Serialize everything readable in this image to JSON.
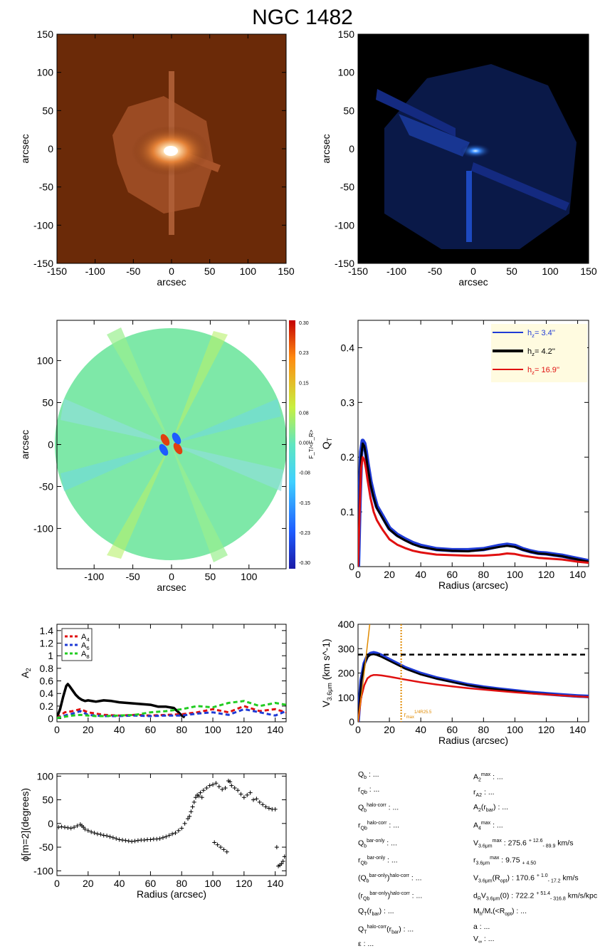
{
  "title": "NGC 1482",
  "colors": {
    "image_panel_bg": "#6b2a08",
    "image_core": "#ffffff",
    "image_glow": "#ff9a3c",
    "residual_bg": "#000000",
    "residual_color": "#2a6cff",
    "h1_color": "#1f3bd6",
    "h2_color": "#000000",
    "h3_color": "#e01010",
    "legend_bg": "#fffbe0",
    "a4_color": "#e01010",
    "a6_color": "#1f3bd6",
    "a8_color": "#22cc22",
    "rmax_line_color": "#e08a00"
  },
  "chart_data": [
    {
      "id": "galaxy_image",
      "type": "heatmap",
      "xlabel": "arcsec",
      "ylabel": "arcsec",
      "xlim": [
        -150,
        150
      ],
      "ylim": [
        -150,
        150
      ],
      "xticks": [
        -150,
        -100,
        -50,
        0,
        50,
        100,
        150
      ],
      "yticks": [
        -150,
        -100,
        -50,
        0,
        50,
        100,
        150
      ],
      "colormap": "orange"
    },
    {
      "id": "residual_image",
      "type": "heatmap",
      "xlabel": "arcsec",
      "ylabel": "arcsec",
      "xlim": [
        -150,
        150
      ],
      "ylim": [
        -150,
        150
      ],
      "xticks": [
        -150,
        -100,
        -50,
        0,
        50,
        100,
        150
      ],
      "yticks": [
        -150,
        -100,
        -50,
        0,
        50,
        100,
        150
      ],
      "colormap": "blue"
    },
    {
      "id": "force_map",
      "type": "heatmap",
      "xlabel": "arcsec",
      "ylabel": "arcsec",
      "xlim": [
        -148,
        148
      ],
      "ylim": [
        -148,
        148
      ],
      "xticks": [
        -100,
        -50,
        0,
        50,
        100
      ],
      "yticks": [
        -100,
        -50,
        0,
        50,
        100
      ],
      "colorbar": {
        "label": "F_T/<F_R>",
        "range": [
          -0.3,
          0.3
        ],
        "ticks": [
          "0.30",
          "0.23",
          "0.15",
          "0.08",
          "0.00",
          "-0.08",
          "-0.15",
          "-0.23",
          "-0.30"
        ]
      }
    },
    {
      "id": "qt_profile",
      "type": "line",
      "xlabel": "Radius (arcsec)",
      "ylabel": "Q_T",
      "xlim": [
        0,
        147
      ],
      "ylim": [
        0,
        0.45
      ],
      "xticks": [
        0,
        20,
        40,
        60,
        80,
        100,
        120,
        140
      ],
      "yticks": [
        0.0,
        0.1,
        0.2,
        0.3,
        0.4
      ],
      "legend": "top-right",
      "legend_entries": [
        {
          "label": "h_z= 3.4''",
          "color": "#1f3bd6"
        },
        {
          "label": "h_z= 4.2''",
          "color": "#000000"
        },
        {
          "label": "h_z= 16.9''",
          "color": "#e01010"
        }
      ],
      "series": [
        {
          "name": "h_z= 3.4''",
          "color": "#1f3bd6",
          "x": [
            0,
            1,
            2,
            3,
            4,
            5,
            6,
            8,
            10,
            12,
            14,
            16,
            18,
            20,
            25,
            30,
            35,
            40,
            50,
            60,
            70,
            80,
            90,
            95,
            100,
            105,
            110,
            115,
            120,
            125,
            130,
            135,
            140,
            147
          ],
          "y": [
            0,
            0.12,
            0.21,
            0.23,
            0.225,
            0.21,
            0.19,
            0.155,
            0.13,
            0.11,
            0.1,
            0.09,
            0.08,
            0.07,
            0.058,
            0.05,
            0.043,
            0.038,
            0.032,
            0.03,
            0.03,
            0.032,
            0.038,
            0.04,
            0.038,
            0.032,
            0.028,
            0.025,
            0.024,
            0.022,
            0.02,
            0.017,
            0.014,
            0.01
          ]
        },
        {
          "name": "h_z= 4.2''",
          "color": "#000000",
          "x": [
            0,
            1,
            2,
            3,
            4,
            5,
            6,
            8,
            10,
            12,
            14,
            16,
            18,
            20,
            25,
            30,
            35,
            40,
            50,
            60,
            70,
            80,
            90,
            95,
            100,
            105,
            110,
            115,
            120,
            125,
            130,
            135,
            140,
            147
          ],
          "y": [
            0,
            0.115,
            0.2,
            0.225,
            0.22,
            0.205,
            0.185,
            0.15,
            0.126,
            0.107,
            0.097,
            0.087,
            0.077,
            0.068,
            0.056,
            0.048,
            0.041,
            0.036,
            0.031,
            0.029,
            0.028,
            0.031,
            0.036,
            0.038,
            0.036,
            0.031,
            0.027,
            0.024,
            0.023,
            0.021,
            0.019,
            0.016,
            0.013,
            0.009
          ]
        },
        {
          "name": "h_z= 16.9''",
          "color": "#e01010",
          "x": [
            0,
            1,
            2,
            3,
            4,
            5,
            6,
            8,
            10,
            12,
            14,
            16,
            18,
            20,
            25,
            30,
            35,
            40,
            50,
            60,
            70,
            80,
            90,
            95,
            100,
            105,
            110,
            115,
            120,
            125,
            130,
            135,
            140,
            147
          ],
          "y": [
            0,
            0.1,
            0.18,
            0.2,
            0.195,
            0.18,
            0.16,
            0.125,
            0.1,
            0.085,
            0.075,
            0.066,
            0.058,
            0.05,
            0.04,
            0.034,
            0.029,
            0.026,
            0.022,
            0.021,
            0.02,
            0.02,
            0.022,
            0.024,
            0.023,
            0.02,
            0.018,
            0.016,
            0.015,
            0.014,
            0.013,
            0.011,
            0.009,
            0.007
          ]
        }
      ]
    },
    {
      "id": "fourier_amplitudes",
      "type": "line",
      "xlabel": "",
      "ylabel": "A_2",
      "xlim": [
        0,
        147
      ],
      "ylim": [
        -0.05,
        1.5
      ],
      "xticks": [
        0,
        20,
        40,
        60,
        80,
        100,
        120,
        140
      ],
      "yticks": [
        0.0,
        0.2,
        0.4,
        0.6,
        0.8,
        1.0,
        1.2,
        1.4
      ],
      "legend": "top-left",
      "legend_entries": [
        {
          "label": "A_4",
          "color": "#e01010"
        },
        {
          "label": "A_6",
          "color": "#1f3bd6"
        },
        {
          "label": "A_8",
          "color": "#22cc22"
        }
      ],
      "series": [
        {
          "name": "A_2",
          "color": "#000000",
          "dash": false,
          "x": [
            0,
            2,
            4,
            6,
            7,
            8,
            10,
            12,
            14,
            16,
            18,
            20,
            25,
            30,
            35,
            40,
            45,
            50,
            55,
            60,
            65,
            70,
            75,
            78,
            80,
            82
          ],
          "y": [
            0.02,
            0.15,
            0.35,
            0.52,
            0.55,
            0.52,
            0.45,
            0.38,
            0.33,
            0.3,
            0.28,
            0.29,
            0.27,
            0.29,
            0.28,
            0.26,
            0.25,
            0.24,
            0.23,
            0.22,
            0.19,
            0.19,
            0.17,
            0.1,
            0.05,
            0.02
          ]
        },
        {
          "name": "A_4",
          "color": "#e01010",
          "dash": true,
          "x": [
            0,
            5,
            10,
            15,
            20,
            25,
            30,
            40,
            50,
            60,
            70,
            80,
            90,
            100,
            110,
            120,
            130,
            140,
            147
          ],
          "y": [
            0.01,
            0.1,
            0.12,
            0.15,
            0.1,
            0.08,
            0.06,
            0.05,
            0.06,
            0.05,
            0.06,
            0.07,
            0.1,
            0.15,
            0.1,
            0.2,
            0.12,
            0.15,
            0.1
          ]
        },
        {
          "name": "A_6",
          "color": "#1f3bd6",
          "dash": true,
          "x": [
            0,
            5,
            10,
            15,
            20,
            25,
            30,
            40,
            50,
            60,
            70,
            80,
            90,
            100,
            110,
            120,
            130,
            140,
            147
          ],
          "y": [
            0.01,
            0.05,
            0.08,
            0.12,
            0.06,
            0.05,
            0.04,
            0.04,
            0.05,
            0.04,
            0.05,
            0.05,
            0.08,
            0.1,
            0.06,
            0.15,
            0.1,
            0.05,
            0.12
          ]
        },
        {
          "name": "A_8",
          "color": "#22cc22",
          "dash": true,
          "x": [
            0,
            5,
            10,
            15,
            20,
            25,
            30,
            40,
            50,
            60,
            70,
            80,
            90,
            100,
            110,
            120,
            130,
            140,
            147
          ],
          "y": [
            0.01,
            0.03,
            0.05,
            0.06,
            0.05,
            0.04,
            0.04,
            0.05,
            0.06,
            0.1,
            0.12,
            0.15,
            0.2,
            0.18,
            0.25,
            0.28,
            0.2,
            0.25,
            0.22
          ]
        }
      ]
    },
    {
      "id": "rotation_curve",
      "type": "line",
      "xlabel": "Radius (arcsec)",
      "ylabel": "V_3.6μm (km s^-1)",
      "xlim": [
        0,
        147
      ],
      "ylim": [
        0,
        400
      ],
      "xticks": [
        0,
        20,
        40,
        60,
        80,
        100,
        120,
        140
      ],
      "yticks": [
        0,
        100,
        200,
        300,
        400
      ],
      "vmax_line": 275.6,
      "rmax_line_x": 27.5,
      "rmax_label": "r_max^(1/4R_25.5)",
      "series": [
        {
          "name": "",
          "color": "#1f3bd6",
          "x": [
            0,
            2,
            4,
            6,
            8,
            10,
            12,
            15,
            20,
            30,
            40,
            50,
            60,
            70,
            80,
            90,
            100,
            110,
            120,
            130,
            140,
            147
          ],
          "y": [
            0,
            170,
            240,
            270,
            280,
            283,
            280,
            272,
            255,
            222,
            198,
            180,
            166,
            152,
            142,
            134,
            127,
            120,
            115,
            110,
            106,
            104
          ]
        },
        {
          "name": "",
          "color": "#000000",
          "x": [
            0,
            2,
            4,
            6,
            8,
            10,
            12,
            15,
            20,
            30,
            40,
            50,
            60,
            70,
            80,
            90,
            100,
            110,
            120,
            130,
            140,
            147
          ],
          "y": [
            0,
            165,
            235,
            265,
            275,
            277,
            274,
            266,
            250,
            218,
            194,
            177,
            163,
            150,
            140,
            132,
            125,
            118,
            113,
            108,
            104,
            102
          ]
        },
        {
          "name": "",
          "color": "#e01010",
          "x": [
            0,
            2,
            4,
            6,
            8,
            10,
            12,
            15,
            20,
            30,
            40,
            50,
            60,
            70,
            80,
            90,
            100,
            110,
            120,
            130,
            140,
            147
          ],
          "y": [
            0,
            100,
            150,
            178,
            188,
            192,
            192,
            190,
            185,
            173,
            162,
            153,
            145,
            138,
            132,
            126,
            121,
            116,
            112,
            108,
            104,
            102
          ]
        },
        {
          "name": "",
          "color": "#e08a00",
          "x": [
            0,
            3,
            5,
            7.5
          ],
          "y": [
            0,
            150,
            260,
            400
          ]
        }
      ]
    },
    {
      "id": "phase_angle",
      "type": "scatter",
      "xlabel": "Radius (arcsec)",
      "ylabel": "ϕ[m=2](degrees)",
      "xlim": [
        0,
        147
      ],
      "ylim": [
        -110,
        105
      ],
      "xticks": [
        0,
        20,
        40,
        60,
        80,
        100,
        120,
        140
      ],
      "yticks": [
        -100,
        -50,
        0,
        50,
        100
      ],
      "series": [
        {
          "name": "",
          "x": [
            1,
            3,
            5,
            7,
            9,
            11,
            13,
            15,
            16,
            17,
            18,
            20,
            22,
            24,
            26,
            28,
            30,
            32,
            34,
            36,
            38,
            40,
            42,
            44,
            46,
            48,
            50,
            52,
            54,
            56,
            58,
            60,
            62,
            64,
            66,
            68,
            70,
            72,
            74,
            76,
            78,
            80,
            82,
            84,
            85,
            86,
            87,
            88,
            89,
            90,
            91,
            92,
            93,
            94,
            96,
            98,
            100,
            102,
            104,
            106,
            108,
            110,
            111,
            112,
            114,
            116,
            118,
            120,
            122,
            124,
            126,
            128,
            130,
            132,
            134,
            136,
            138,
            140,
            141,
            142,
            143,
            144,
            145,
            146,
            101,
            103,
            105,
            107,
            109
          ],
          "y": [
            -8,
            -7,
            -8,
            -9,
            -10,
            -8,
            -5,
            -2,
            -5,
            -8,
            -12,
            -15,
            -18,
            -20,
            -22,
            -23,
            -25,
            -26,
            -28,
            -30,
            -32,
            -34,
            -35,
            -36,
            -37,
            -38,
            -37,
            -36,
            -35,
            -35,
            -34,
            -34,
            -33,
            -33,
            -32,
            -30,
            -28,
            -25,
            -22,
            -20,
            -15,
            -10,
            0,
            10,
            15,
            25,
            35,
            45,
            55,
            60,
            58,
            65,
            55,
            70,
            75,
            80,
            82,
            85,
            78,
            72,
            75,
            90,
            88,
            80,
            75,
            70,
            62,
            55,
            60,
            65,
            50,
            52,
            45,
            40,
            35,
            32,
            30,
            30,
            -50,
            -90,
            -88,
            -85,
            -80,
            -70,
            -40,
            -45,
            -50,
            -55,
            -60
          ]
        }
      ]
    }
  ],
  "params_left": [
    "Q<sub>b</sub> : ...",
    "r<sub>Qb</sub> : ...",
    "Q<sub>b</sub><sup>halo-corr</sup> : ...",
    "r<sub>Qb</sub><sup>halo-corr</sup> : ...",
    "Q<sub>b</sub><sup>bar-only</sup> : ...",
    "r<sub>Qb</sub><sup>bar-only</sup> : ...",
    "(Q<sub>b</sub><sup>bar-only</sup>)<sup>halo-corr</sup> : ...",
    "(r<sub>Qb</sub><sup>bar-only</sup>)<sup>halo-corr</sup> : ...",
    "Q<sub>T</sub>(r<sub>bar</sub>) : ...",
    "Q<sub>T</sub><sup>halo-corr</sup>(r<sub>bar</sub>) : ...",
    "ε : ..."
  ],
  "params_right": [
    "A<sub>2</sub><sup>max</sup> : ...",
    "r<sub>A2</sub> : ...",
    "A<sub>2</sub>(r<sub>bar</sub>) : ...",
    "A<sub>4</sub><sup>max</sup> : ...",
    "V<sub>3.6μm</sub><sup>max</sup> :  275.6 <sup>+ 12.6</sup><sub>- 89.9</sub> km/s",
    "r<sub>3.6μm</sub><sup>max</sup> :  9.75 <sub>+ 4.50</sub>",
    "V<sub>3.6μm</sub>(R<sub>opt</sub>) :  170.6 <sup>+ 1.0</sup><sub>- 17.2</sub> km/s",
    "d<sub>R</sub>V<sub>3.6μm</sub>(0) :  722.2 <sup>+ 51.4</sup><sub>- 316.8</sub> km/s/kpc",
    "M<sub>h</sub>/M<sub>*</sub>(&lt;R<sub>opt</sub>) : ...",
    "a : ...",
    "V<sub>∞</sub> : ..."
  ]
}
